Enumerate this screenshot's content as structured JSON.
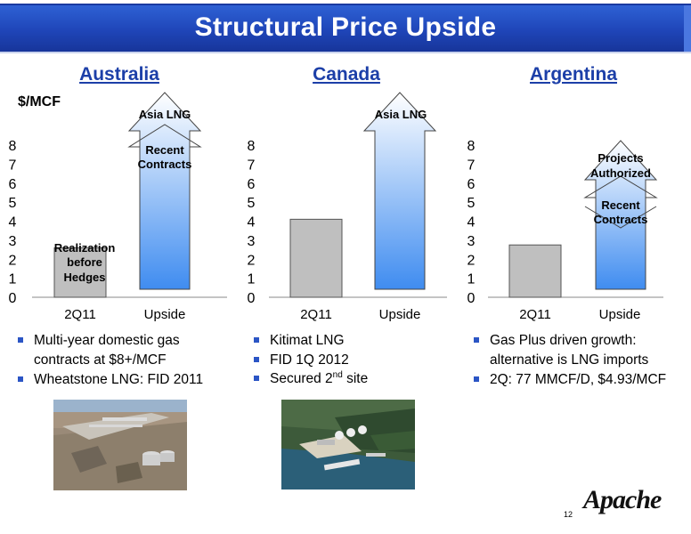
{
  "title": "Structural Price Upside",
  "unit_label": "$/MCF",
  "regions": [
    {
      "name": "Australia"
    },
    {
      "name": "Canada"
    },
    {
      "name": "Argentina"
    }
  ],
  "chart_data": [
    {
      "type": "bar",
      "title": "Australia",
      "ylabel": "$/MCF",
      "categories": [
        "2Q11",
        "Upside"
      ],
      "yticks": [
        "0",
        "1",
        "2",
        "3",
        "4",
        "5",
        "6",
        "7",
        "8"
      ],
      "ylim": [
        0,
        8
      ],
      "grid": false,
      "values": [
        2.6,
        null
      ],
      "bar_label": "Realization before Hedges",
      "upside_arrow_label": "Asia LNG",
      "upside_inner_label": "Recent Contracts",
      "colors": {
        "bar": "#bfbfbf",
        "arrow_top": "#ffffff",
        "arrow_bottom": "#3f8cf0"
      }
    },
    {
      "type": "bar",
      "title": "Canada",
      "categories": [
        "2Q11",
        "Upside"
      ],
      "yticks": [
        "0",
        "1",
        "2",
        "3",
        "4",
        "5",
        "6",
        "7",
        "8"
      ],
      "ylim": [
        0,
        8
      ],
      "grid": false,
      "values": [
        4.1,
        null
      ],
      "upside_arrow_label": "Asia LNG",
      "colors": {
        "bar": "#bfbfbf",
        "arrow_top": "#ffffff",
        "arrow_bottom": "#3f8cf0"
      }
    },
    {
      "type": "bar",
      "title": "Argentina",
      "categories": [
        "2Q11",
        "Upside"
      ],
      "yticks": [
        "0",
        "1",
        "2",
        "3",
        "4",
        "5",
        "6",
        "7",
        "8"
      ],
      "ylim": [
        0,
        8
      ],
      "grid": false,
      "values": [
        2.75,
        null
      ],
      "upside_arrow_label": "Projects Authorized",
      "upside_inner_label": "Recent Contracts",
      "colors": {
        "bar": "#bfbfbf",
        "arrow_top": "#ffffff",
        "arrow_bottom": "#3f8cf0"
      }
    }
  ],
  "bullets": {
    "australia": [
      "Multi-year domestic gas contracts at $8+/MCF",
      "Wheatstone LNG: FID 2011"
    ],
    "canada": [
      "Kitimat LNG",
      "FID 1Q 2012",
      "Secured 2",
      "nd",
      " site"
    ],
    "argentina": [
      "Gas Plus driven growth: alternative is LNG imports",
      "2Q: 77 MMCF/D, $4.93/MCF"
    ]
  },
  "logo_text": "Apache",
  "page_number": "12",
  "colors": {
    "title_bar": "#1f45b8",
    "heading": "#1c3fa8",
    "bullet": "#2b55c5"
  }
}
